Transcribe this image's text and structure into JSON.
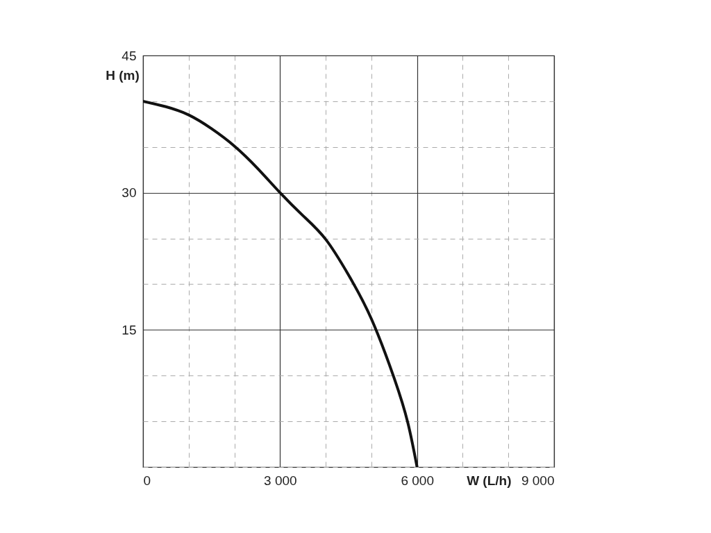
{
  "chart_data": {
    "type": "line",
    "xlabel": "W (L/h)",
    "ylabel": "H (m)",
    "x": [
      0,
      500,
      1000,
      1500,
      2000,
      2500,
      3000,
      3500,
      4000,
      4500,
      5000,
      5500,
      5800,
      6000
    ],
    "series": [
      {
        "color": "#111111",
        "values": [
          40,
          39.4,
          38.5,
          37,
          35.1,
          32.7,
          30,
          27.5,
          24.9,
          21,
          16.2,
          9.7,
          4.8,
          0
        ]
      }
    ],
    "xlim": [
      0,
      9000
    ],
    "xticks": [
      {
        "value": 0,
        "label": "0"
      },
      {
        "value": 1000,
        "label": null
      },
      {
        "value": 2000,
        "label": null
      },
      {
        "value": 3000,
        "label": "3 000"
      },
      {
        "value": 4000,
        "label": null
      },
      {
        "value": 5000,
        "label": null
      },
      {
        "value": 6000,
        "label": "6 000"
      },
      {
        "value": 7000,
        "label": null
      },
      {
        "value": 8000,
        "label": null
      },
      {
        "value": 9000,
        "label": "9 000"
      }
    ],
    "ylim": [
      0,
      45
    ],
    "yticks": [
      {
        "value": 0,
        "label": null
      },
      {
        "value": 5,
        "label": null
      },
      {
        "value": 10,
        "label": null
      },
      15,
      {
        "value": 20,
        "label": null
      },
      {
        "value": 25,
        "label": null
      },
      30,
      {
        "value": 35,
        "label": null
      },
      {
        "value": 40,
        "label": null
      },
      45
    ],
    "grid": true,
    "marker": "none",
    "line_style": "solid"
  }
}
